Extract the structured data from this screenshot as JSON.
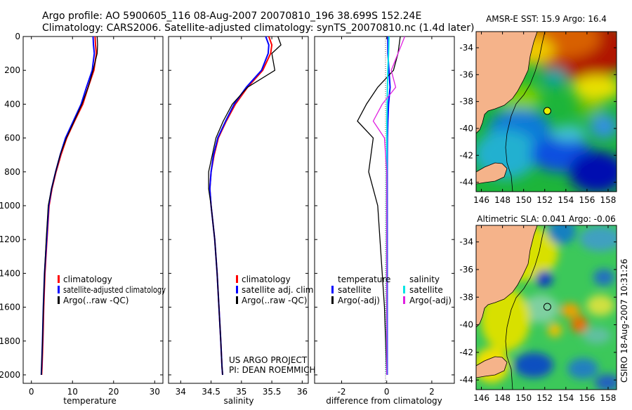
{
  "header": {
    "line1": "Argo profile: AO 5900605_116 08-Aug-2007 20070810_196 38.699S 152.24E",
    "line2": "Climatology: CARS2006. Satellite-adjusted climatology: synTS_20070810.nc (1.4d later)"
  },
  "footer": {
    "project": "US ARGO PROJECT",
    "pi": "PI: DEAN ROEMMICH",
    "stamp": "CSIRO 18-Aug-2007 10:31:26"
  },
  "colors": {
    "climatology": "#ff0000",
    "satellite": "#0000ff",
    "argo": "#000000",
    "sat_diff_sal": "#00e5e5",
    "argo_diff_sal": "#e020e0",
    "land": "#f5b38a",
    "marker": "#e8f000"
  },
  "chart_data": [
    {
      "type": "line",
      "title": "",
      "xlabel": "temperature",
      "ylabel": "",
      "xlim": [
        -2,
        32
      ],
      "ylim": [
        2050,
        0
      ],
      "xticks": [
        "0",
        "10",
        "20",
        "30"
      ],
      "yticks": [
        "0",
        "200",
        "400",
        "600",
        "800",
        "1000",
        "1200",
        "1400",
        "1600",
        "1800",
        "2000"
      ],
      "legend": [
        "climatology",
        "satellite-adjusted climatology",
        "Argo(..raw -QC)"
      ],
      "legend_position": "lower-right",
      "series": [
        {
          "name": "climatology",
          "x": [
            15.5,
            15.6,
            15.8,
            15.2,
            13.8,
            12.5,
            10.5,
            8.6,
            7.2,
            6.0,
            5.0,
            4.3,
            3.8,
            3.3,
            3.0,
            2.8,
            2.6,
            2.5
          ],
          "y": [
            0,
            50,
            100,
            200,
            300,
            400,
            500,
            600,
            700,
            800,
            900,
            1000,
            1200,
            1400,
            1600,
            1800,
            1950,
            2000
          ]
        },
        {
          "name": "satellite-adjusted climatology",
          "x": [
            15.0,
            15.1,
            15.3,
            14.8,
            13.4,
            12.1,
            10.2,
            8.3,
            7.0,
            5.9,
            4.9,
            4.2,
            3.7,
            3.2,
            2.9,
            2.7,
            2.5,
            2.4
          ],
          "y": [
            0,
            50,
            100,
            200,
            300,
            400,
            500,
            600,
            700,
            800,
            900,
            1000,
            1200,
            1400,
            1600,
            1800,
            1950,
            2000
          ]
        },
        {
          "name": "Argo(..raw -QC)",
          "x": [
            16.0,
            16.1,
            16.0,
            15.0,
            13.8,
            12.3,
            10.4,
            8.5,
            7.0,
            5.9,
            4.9,
            4.1,
            3.6,
            3.2,
            2.9,
            2.7,
            2.5,
            2.4
          ],
          "y": [
            0,
            50,
            100,
            200,
            300,
            400,
            500,
            600,
            700,
            800,
            900,
            1000,
            1200,
            1400,
            1600,
            1800,
            1950,
            2000
          ]
        }
      ]
    },
    {
      "type": "line",
      "title": "",
      "xlabel": "salinity",
      "ylabel": "",
      "xlim": [
        33.8,
        36.1
      ],
      "ylim": [
        2050,
        0
      ],
      "xticks": [
        "34",
        "34.5",
        "35",
        "35.5",
        "36"
      ],
      "legend": [
        "climatology",
        "satellite adj. clim.",
        "Argo(..raw -QC)"
      ],
      "legend_position": "lower-right",
      "series": [
        {
          "name": "climatology",
          "x": [
            35.45,
            35.5,
            35.48,
            35.35,
            35.1,
            34.9,
            34.75,
            34.62,
            34.55,
            34.5,
            34.48,
            34.5,
            34.56,
            34.6,
            34.63,
            34.66,
            34.68,
            34.69
          ],
          "y": [
            0,
            50,
            100,
            200,
            300,
            400,
            500,
            600,
            700,
            800,
            900,
            1000,
            1200,
            1400,
            1600,
            1800,
            1950,
            2000
          ]
        },
        {
          "name": "satellite adj. clim.",
          "x": [
            35.4,
            35.45,
            35.44,
            35.33,
            35.08,
            34.88,
            34.74,
            34.61,
            34.54,
            34.5,
            34.48,
            34.5,
            34.56,
            34.6,
            34.63,
            34.66,
            34.68,
            34.69
          ],
          "y": [
            0,
            50,
            100,
            200,
            300,
            400,
            500,
            600,
            700,
            800,
            900,
            1000,
            1200,
            1400,
            1600,
            1800,
            1950,
            2000
          ]
        },
        {
          "name": "Argo(..raw -QC)",
          "x": [
            35.6,
            35.65,
            35.5,
            35.55,
            35.1,
            34.85,
            34.7,
            34.58,
            34.52,
            34.46,
            34.46,
            34.5,
            34.56,
            34.6,
            34.63,
            34.66,
            34.68,
            34.69
          ],
          "y": [
            0,
            50,
            100,
            200,
            300,
            400,
            500,
            600,
            700,
            800,
            900,
            1000,
            1200,
            1400,
            1600,
            1800,
            1950,
            2000
          ]
        }
      ]
    },
    {
      "type": "line",
      "title": "",
      "xlabel": "difference from climatology",
      "ylabel": "",
      "xlim": [
        -3.2,
        3.0
      ],
      "ylim": [
        2050,
        0
      ],
      "xticks": [
        "-2",
        "0",
        "2"
      ],
      "legend_titles": [
        "temperature",
        "salinity"
      ],
      "legend": [
        "satellite",
        "Argo(-adj)",
        "satellite",
        "Argo(-adj)"
      ],
      "legend_position": "lower-right",
      "series": [
        {
          "name": "temperature satellite",
          "x": [
            0.05,
            0.05,
            0.1,
            0.15,
            0.08,
            0.05,
            0.03,
            0.02,
            0.02,
            0.02,
            0.02,
            0.02,
            0.02,
            0.02,
            0.02
          ],
          "y": [
            0,
            100,
            200,
            300,
            400,
            500,
            600,
            800,
            1000,
            1200,
            1400,
            1600,
            1800,
            1950,
            2000
          ]
        },
        {
          "name": "temperature Argo(-adj)",
          "x": [
            0.6,
            0.5,
            0.3,
            -0.4,
            -0.9,
            -1.3,
            -0.6,
            -0.8,
            -0.4,
            -0.3,
            -0.2,
            -0.1,
            -0.05,
            -0.02,
            0.0
          ],
          "y": [
            0,
            100,
            200,
            300,
            400,
            500,
            600,
            800,
            1000,
            1200,
            1400,
            1600,
            1800,
            1950,
            2000
          ]
        },
        {
          "name": "salinity satellite",
          "x": [
            0.1,
            0.08,
            0.05,
            0.03,
            0.02,
            0.01,
            0.01,
            0.0,
            0.0,
            0.0,
            0.0,
            0.0,
            0.0,
            0.0,
            0.0
          ],
          "y": [
            0,
            100,
            200,
            300,
            400,
            500,
            600,
            800,
            1000,
            1200,
            1400,
            1600,
            1800,
            1950,
            2000
          ]
        },
        {
          "name": "salinity Argo(-adj)",
          "x": [
            0.8,
            0.5,
            0.2,
            0.4,
            -0.2,
            -0.6,
            -0.1,
            0.0,
            0.0,
            0.0,
            0.0,
            0.0,
            0.0,
            0.0,
            0.0
          ],
          "y": [
            0,
            100,
            200,
            300,
            400,
            500,
            600,
            800,
            1000,
            1200,
            1400,
            1600,
            1800,
            1950,
            2000
          ]
        }
      ]
    },
    {
      "type": "heatmap",
      "title": "AMSR-E SST: 15.9 Argo: 16.4",
      "xlim": [
        145.5,
        158.8
      ],
      "ylim": [
        -44.7,
        -32.8
      ],
      "xticks": [
        "146",
        "148",
        "150",
        "152",
        "154",
        "156",
        "158"
      ],
      "yticks": [
        "-34",
        "-36",
        "-38",
        "-40",
        "-42",
        "-44"
      ],
      "float_position": {
        "lon": 152.24,
        "lat": -38.699
      }
    },
    {
      "type": "heatmap",
      "title": "Altimetric SLA: 0.041 Argo: -0.06",
      "xlim": [
        145.5,
        158.8
      ],
      "ylim": [
        -44.7,
        -32.8
      ],
      "xticks": [
        "146",
        "148",
        "150",
        "152",
        "154",
        "156",
        "158"
      ],
      "yticks": [
        "-34",
        "-36",
        "-38",
        "-40",
        "-42",
        "-44"
      ],
      "float_position": {
        "lon": 152.24,
        "lat": -38.699
      }
    }
  ]
}
